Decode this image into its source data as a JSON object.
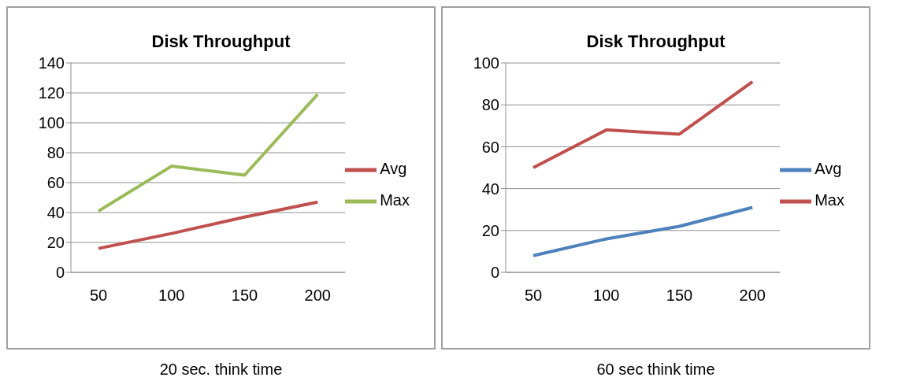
{
  "chart_data": [
    {
      "type": "line",
      "title": "Disk Throughput",
      "categories": [
        "50",
        "100",
        "150",
        "200"
      ],
      "series": [
        {
          "name": "Avg",
          "color": "#c0504d",
          "values": [
            16,
            26,
            37,
            47
          ]
        },
        {
          "name": "Max",
          "color": "#9bbb59",
          "values": [
            41,
            71,
            65,
            119
          ]
        }
      ],
      "ylim": [
        0,
        140
      ],
      "yticks": [
        0,
        20,
        40,
        60,
        80,
        100,
        120,
        140
      ],
      "grid": "y",
      "legend": "right",
      "marker": "none",
      "annotations": [
        "20 sec. think time"
      ]
    },
    {
      "type": "line",
      "title": "Disk Throughput",
      "categories": [
        "50",
        "100",
        "150",
        "200"
      ],
      "series": [
        {
          "name": "Avg",
          "color": "#4f81bd",
          "values": [
            8,
            16,
            22,
            31
          ]
        },
        {
          "name": "Max",
          "color": "#c0504d",
          "values": [
            50,
            68,
            66,
            91
          ]
        }
      ],
      "ylim": [
        0,
        100
      ],
      "yticks": [
        0,
        20,
        40,
        60,
        80,
        100
      ],
      "grid": "y",
      "legend": "right",
      "marker": "none",
      "annotations": [
        "60 sec think time"
      ]
    }
  ]
}
